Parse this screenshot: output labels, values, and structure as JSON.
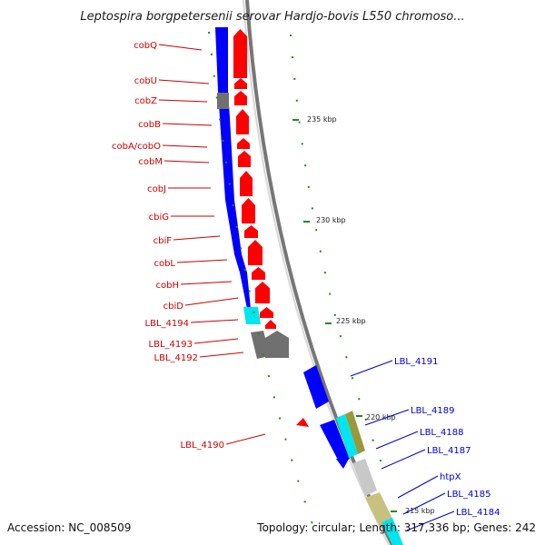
{
  "title": "Leptospira borgpetersenii serovar Hardjo-bovis L550 chromoso...",
  "footer": {
    "accession": "Accession: NC_008509",
    "summary": "Topology: circular; Length: 317,336 bp; Genes: 242"
  },
  "colors": {
    "forward_gene": "#ff0000",
    "reverse_gene": "#0000ff",
    "forward_label": "#cc0000",
    "reverse_label": "#0000cc",
    "gray_feature": "#707070",
    "cyan_feature": "#00e5ee",
    "olive_feature": "#99993a",
    "khaki_feature": "#c8c080",
    "light_gray_feature": "#c8c8c8",
    "backbone": "#888888",
    "tick": "#228b22"
  },
  "ticks": [
    "235 kbp",
    "230 kbp",
    "225 kbp",
    "220 kbp",
    "215 kbp"
  ],
  "forward_labels": [
    "cobQ",
    "cobU",
    "cobZ",
    "cobB",
    "cobA/cobO",
    "cobM",
    "cobJ",
    "cbiG",
    "cbiF",
    "cobL",
    "cobH",
    "cbiD",
    "LBL_4194",
    "LBL_4193",
    "LBL_4192",
    "LBL_4190"
  ],
  "reverse_labels": [
    "LBL_4191",
    "LBL_4189",
    "LBL_4188",
    "LBL_4187",
    "htpX",
    "LBL_4185",
    "LBL_4184"
  ]
}
